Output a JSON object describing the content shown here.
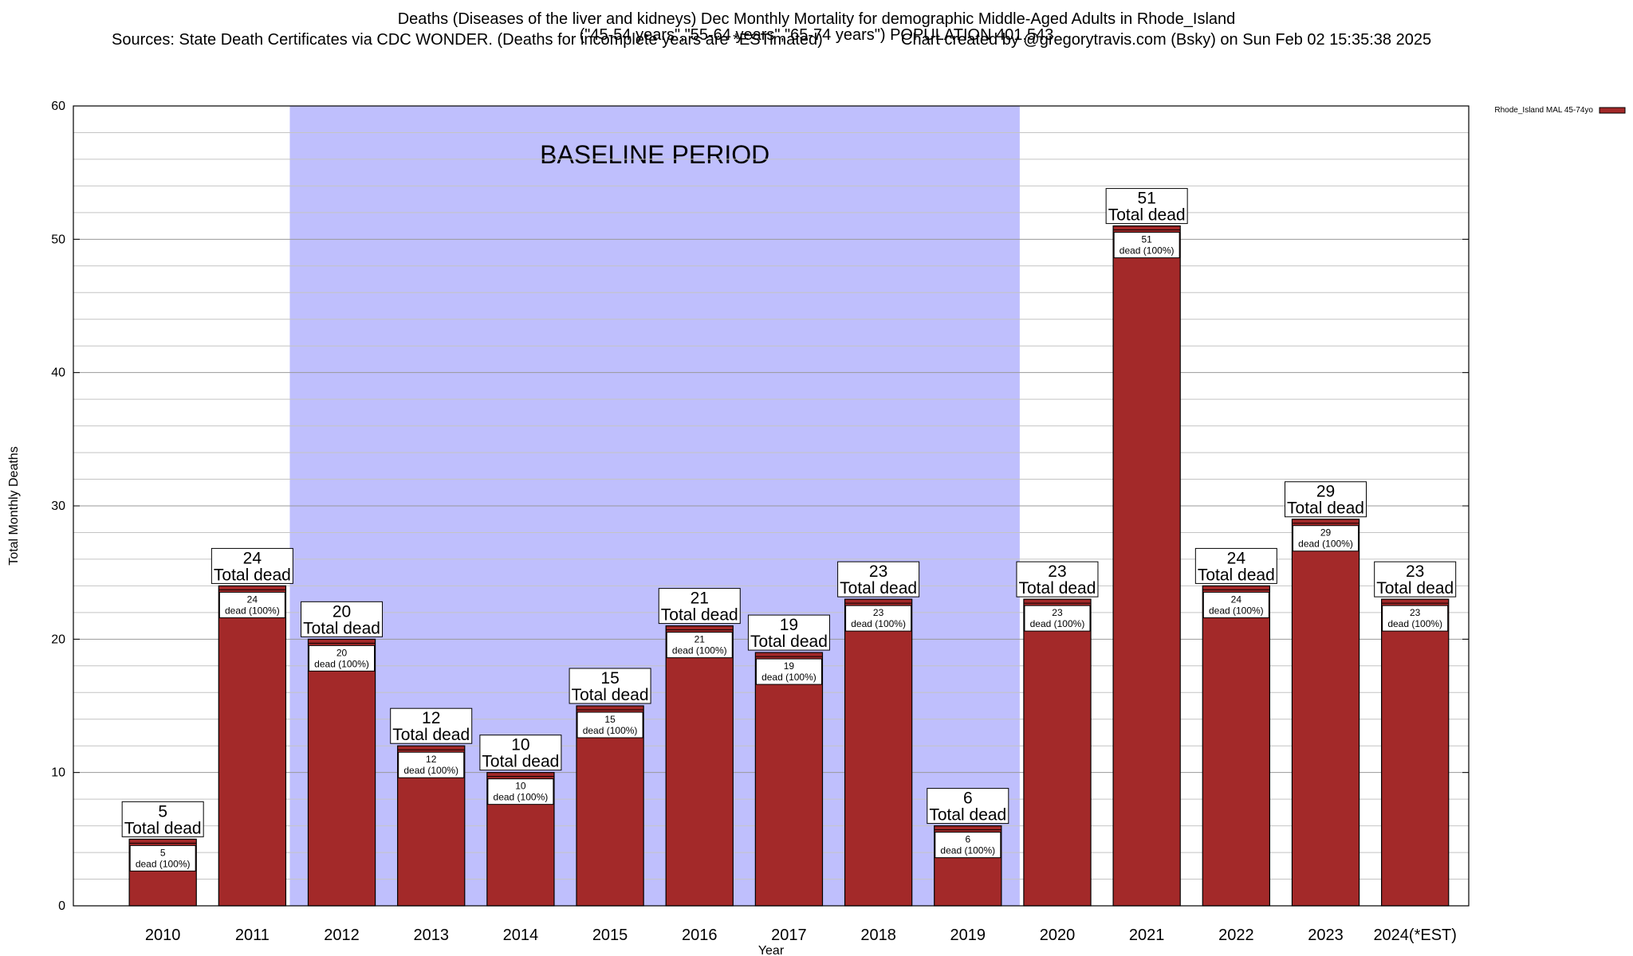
{
  "header": {
    "title_line1": "Deaths (Diseases of the liver and kidneys) Dec Monthly Mortality for demographic Middle-Aged Adults in Rhode_Island",
    "title_line2": "(\"45-54 years\",\"55-64 years\",\"65-74 years\") POPULATION 401,543",
    "sources": "Sources: State Death Certificates via CDC WONDER. (Deaths for incomplete years are *ESTimated)",
    "credit": "Chart created by @gregorytravis.com (Bsky) on Sun Feb 02 15:35:38 2025"
  },
  "chart_data": {
    "type": "bar",
    "xlabel": "Year",
    "ylabel": "Total Monthly Deaths",
    "ylim": [
      0,
      60
    ],
    "y_major_ticks": [
      0,
      10,
      20,
      30,
      40,
      50,
      60
    ],
    "y_minor_step": 2,
    "grid": true,
    "categories": [
      "2010",
      "2011",
      "2012",
      "2013",
      "2014",
      "2015",
      "2016",
      "2017",
      "2018",
      "2019",
      "2020",
      "2021",
      "2022",
      "2023",
      "2024(*EST)"
    ],
    "series": [
      {
        "name": "Rhode_Island MAL 45-74yo",
        "values": [
          5,
          24,
          20,
          12,
          10,
          15,
          21,
          19,
          23,
          6,
          23,
          51,
          24,
          29,
          23
        ]
      }
    ],
    "bar_top_labels": [
      "5\nTotal dead",
      "24\nTotal dead",
      "20\nTotal dead",
      "12\nTotal dead",
      "10\nTotal dead",
      "15\nTotal dead",
      "21\nTotal dead",
      "19\nTotal dead",
      "23\nTotal dead",
      "6\nTotal dead",
      "23\nTotal dead",
      "51\nTotal dead",
      "24\nTotal dead",
      "29\nTotal dead",
      "23\nTotal dead"
    ],
    "bar_inner_labels": [
      "5\ndead (100%)",
      "24\ndead (100%)",
      "20\ndead (100%)",
      "12\ndead (100%)",
      "10\ndead (100%)",
      "15\ndead (100%)",
      "21\ndead (100%)",
      "19\ndead (100%)",
      "23\ndead (100%)",
      "6\ndead (100%)",
      "23\ndead (100%)",
      "51\ndead (100%)",
      "24\ndead (100%)",
      "29\ndead (100%)",
      "23\ndead (100%)"
    ],
    "baseline_period": {
      "label": "BASELINE PERIOD",
      "start_category": "2012",
      "end_category": "2019",
      "color": "#bfbffd"
    },
    "bar_color": "#a32929",
    "legend": {
      "placement": "top-right"
    }
  }
}
